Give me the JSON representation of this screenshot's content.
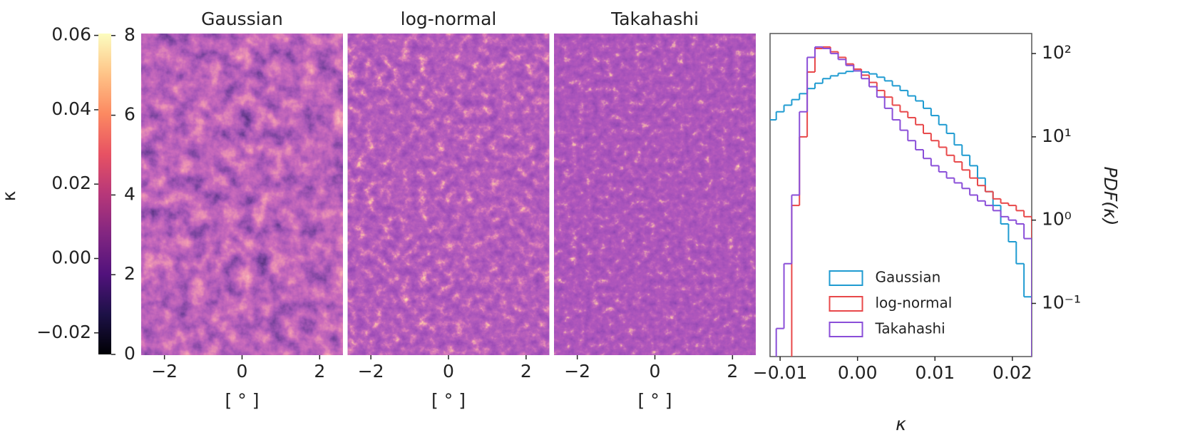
{
  "chart_data": [
    {
      "type": "colorbar",
      "label": "κ",
      "colors": [
        "#000004",
        "#1d1147",
        "#51127c",
        "#822681",
        "#b73779",
        "#e75263",
        "#fc8961",
        "#fec488",
        "#fcfdbf"
      ],
      "ylim": [
        -0.0258,
        0.0605
      ],
      "yticks": [
        {
          "value": -0.02,
          "label": "−0.02"
        },
        {
          "value": 0.0,
          "label": "0.00"
        },
        {
          "value": 0.02,
          "label": "0.02"
        },
        {
          "value": 0.04,
          "label": "0.04"
        },
        {
          "value": 0.06,
          "label": "0.06"
        }
      ],
      "y2lim": [
        0,
        8.05
      ],
      "y2ticks": [
        0,
        2,
        4,
        6,
        8
      ]
    },
    {
      "type": "heatmap",
      "title": "Gaussian",
      "xlabel": "[ ° ]",
      "xlim": [
        -2.6,
        2.6
      ],
      "xticks": [
        {
          "value": -2,
          "label": "−2"
        },
        0,
        2
      ]
    },
    {
      "type": "heatmap",
      "title": "log-normal",
      "xlabel": "[ ° ]",
      "xlim": [
        -2.6,
        2.6
      ],
      "xticks": [
        {
          "value": -2,
          "label": "−2"
        },
        0,
        2
      ]
    },
    {
      "type": "heatmap",
      "title": "Takahashi",
      "xlabel": "[ ° ]",
      "xlim": [
        -2.6,
        2.6
      ],
      "xticks": [
        {
          "value": -2,
          "label": "−2"
        },
        0,
        2
      ]
    },
    {
      "type": "histogram",
      "xlabel": "κ",
      "ylabel": "PDF(κ)",
      "log_y": true,
      "legend": "lower center",
      "xlim": [
        -0.0113,
        0.0225
      ],
      "ylim": [
        0.023,
        174
      ],
      "xticks": [
        {
          "value": -0.01,
          "label": "−0.01"
        },
        {
          "value": 0.0,
          "label": "0.00"
        },
        {
          "value": 0.01,
          "label": "0.01"
        },
        {
          "value": 0.02,
          "label": "0.02"
        }
      ],
      "yticks": [
        {
          "value": 0.1,
          "label": "10⁻¹"
        },
        {
          "value": 1,
          "label": "10⁰"
        },
        {
          "value": 10,
          "label": "10¹"
        },
        {
          "value": 100,
          "label": "10²"
        }
      ],
      "bins": [
        -0.0115,
        -0.0105,
        -0.0095,
        -0.0085,
        -0.0075,
        -0.0065,
        -0.0055,
        -0.0045,
        -0.0035,
        -0.0025,
        -0.0015,
        -0.0005,
        0.0005,
        0.0015,
        0.0025,
        0.0035,
        0.0045,
        0.0055,
        0.0065,
        0.0075,
        0.0085,
        0.0095,
        0.0105,
        0.0115,
        0.0125,
        0.0135,
        0.0145,
        0.0155,
        0.0165,
        0.0175,
        0.0185,
        0.0195,
        0.0205,
        0.0215,
        0.0225
      ],
      "series": [
        {
          "name": "Gaussian",
          "color": "#1f9bd1",
          "values": [
            16,
            20,
            24,
            28,
            33,
            38,
            44,
            50,
            54,
            58,
            61,
            62,
            60,
            57,
            52,
            47,
            41,
            36,
            31,
            27,
            22,
            18,
            14,
            11,
            8,
            6,
            4.5,
            3.2,
            2.2,
            1.5,
            0.9,
            0.55,
            0.3,
            0.12
          ]
        },
        {
          "name": "log-normal",
          "color": "#e8484a",
          "values": [
            null,
            null,
            null,
            1.5,
            10,
            60,
            115,
            120,
            105,
            90,
            75,
            65,
            55,
            45,
            36,
            30,
            24,
            20,
            17,
            14,
            11,
            9,
            7.5,
            6,
            5,
            4,
            3.2,
            2.6,
            2.2,
            1.8,
            1.6,
            1.5,
            1.3,
            1.1
          ]
        },
        {
          "name": "Takahashi",
          "color": "#8a4ed8",
          "values": [
            null,
            0.05,
            0.3,
            2,
            20,
            90,
            120,
            115,
            100,
            85,
            72,
            62,
            50,
            40,
            30,
            22,
            16,
            12,
            9,
            7,
            5.5,
            4.5,
            3.8,
            3.2,
            2.8,
            2.4,
            2,
            1.7,
            1.5,
            1.3,
            1.1,
            1,
            0.9,
            0.6
          ]
        }
      ]
    }
  ]
}
